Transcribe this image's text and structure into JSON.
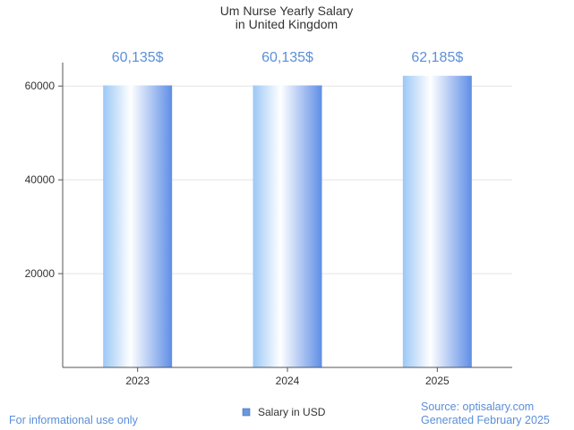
{
  "chart_data": {
    "type": "bar",
    "title_lines": [
      "Um Nurse Yearly Salary",
      "in United Kingdom"
    ],
    "categories": [
      "2023",
      "2024",
      "2025"
    ],
    "series": [
      {
        "name": "Salary in USD",
        "values": [
          60135,
          60135,
          62185
        ]
      }
    ],
    "value_labels": [
      "60,135$",
      "60,135$",
      "62,185$"
    ],
    "yticks": [
      20000,
      40000,
      60000
    ],
    "ylim": [
      0,
      65000
    ],
    "grid": true,
    "legend_position": "bottom-center",
    "bar_gradient": [
      "#9cc8f6",
      "#ffffff",
      "#5f8ee6"
    ],
    "label_color": "#5b8fd8"
  },
  "footer": {
    "disclaimer": "For informational use only",
    "source": "Source: optisalary.com",
    "generated": "Generated February 2025"
  }
}
